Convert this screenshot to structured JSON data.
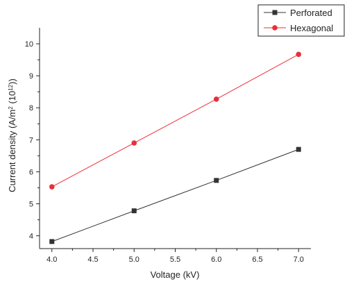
{
  "chart_data": {
    "type": "line",
    "title": "",
    "xlabel": "Voltage (kV)",
    "ylabel_main": "Current density (A/m",
    "ylabel_sup1": "2",
    "ylabel_mid": " (10",
    "ylabel_sup2": "12",
    "ylabel_end": "))",
    "xlim": [
      3.85,
      7.15
    ],
    "ylim": [
      3.6,
      10.5
    ],
    "x_ticks": [
      4.0,
      4.5,
      5.0,
      5.5,
      6.0,
      6.5,
      7.0
    ],
    "x_tick_labels": [
      "4.0",
      "4.5",
      "5.0",
      "5.5",
      "6.0",
      "6.5",
      "7.0"
    ],
    "y_ticks": [
      4,
      5,
      6,
      7,
      8,
      9,
      10
    ],
    "y_tick_labels": [
      "4",
      "5",
      "6",
      "7",
      "8",
      "9",
      "10"
    ],
    "grid": false,
    "legend_position": "top-right",
    "series": [
      {
        "name": "Perforated",
        "marker": "square",
        "color": "#333333",
        "x": [
          4.0,
          5.0,
          6.0,
          7.0
        ],
        "y": [
          3.82,
          4.78,
          5.73,
          6.7
        ]
      },
      {
        "name": "Hexagonal",
        "marker": "circle",
        "color": "#e8303a",
        "x": [
          4.0,
          5.0,
          6.0,
          7.0
        ],
        "y": [
          5.53,
          6.9,
          8.27,
          9.67
        ]
      }
    ]
  }
}
